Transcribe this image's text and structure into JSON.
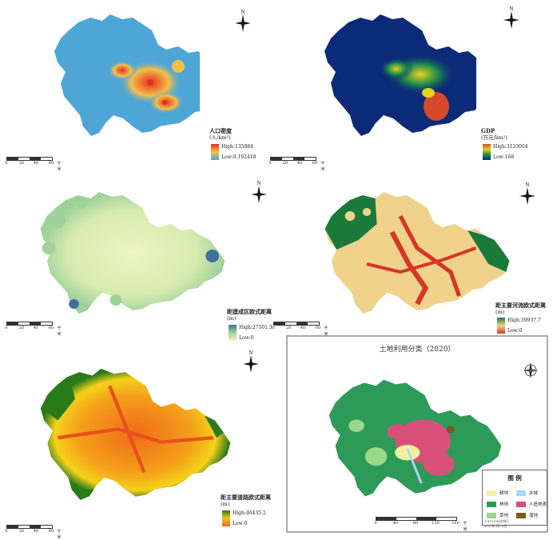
{
  "panels": [
    {
      "id": "pop",
      "title": "人口密度",
      "unit": "(人/km²)",
      "high": "High:135884",
      "low": "Low:0.192418",
      "colors": {
        "base": "#4ea6d6",
        "high": "#e2301f",
        "mid": "#f4c04a"
      },
      "scale": {
        "ticks": [
          "0",
          "20",
          "40",
          "60"
        ],
        "unit": "千米"
      }
    },
    {
      "id": "gdp",
      "title": "GDP",
      "unit": "(万元/km²)",
      "high": "High:3123004",
      "low": "Low:168",
      "colors": {
        "base": "#0b2a78",
        "mid": "#1e8a4a",
        "high": "#e6d220",
        "hot": "#d6482a"
      },
      "scale": {
        "ticks": [
          "0",
          "20",
          "40",
          "60"
        ],
        "unit": "千米"
      }
    },
    {
      "id": "built",
      "title": "距建成区欧式距离",
      "unit": "(m)",
      "high": "High:27501.3",
      "low": "Low:0",
      "colors": {
        "base": "#eef5c0",
        "mid": "#9fd29a",
        "high": "#3f6fa0"
      },
      "scale": {
        "ticks": [
          "0",
          "20",
          "40",
          "60"
        ],
        "unit": "千米"
      }
    },
    {
      "id": "river",
      "title": "距主要河流欧式距离",
      "unit": "(m)",
      "high": "High:39937.7",
      "low": "Low:0",
      "colors": {
        "base": "#f0d28a",
        "mid": "#d6352a",
        "high": "#1a7a3a"
      },
      "scale": {
        "ticks": [
          "0",
          "20",
          "40",
          "60"
        ],
        "unit": "千米"
      }
    },
    {
      "id": "road",
      "title": "距主要道路欧式距离",
      "unit": "(m)",
      "high": "High:46435.2",
      "low": "Low:0",
      "colors": {
        "base": "#f06a1a",
        "mid": "#f5c21a",
        "high": "#2a7a1a"
      },
      "scale": {
        "ticks": [
          "0",
          "20",
          "40",
          "60"
        ],
        "unit": "千米"
      }
    }
  ],
  "north_label": "N",
  "landuse": {
    "title": "土地利用分类（2020）",
    "legend_title": "图 例",
    "classes": [
      {
        "label": "耕地",
        "color": "#f5f0a0"
      },
      {
        "label": "水域",
        "color": "#a8d8f0"
      },
      {
        "label": "林地",
        "color": "#2e9a5a"
      },
      {
        "label": "人造地表",
        "color": "#d8507a"
      },
      {
        "label": "草地",
        "color": "#9ad88a"
      },
      {
        "label": "湿地",
        "color": "#7a5a20"
      }
    ],
    "scale": {
      "ticks": [
        "0",
        "40",
        "80",
        "120",
        "160"
      ],
      "unit": "千米"
    },
    "fine_print": [
      "1:470,000比例尺",
      "2022年9月14日"
    ]
  }
}
